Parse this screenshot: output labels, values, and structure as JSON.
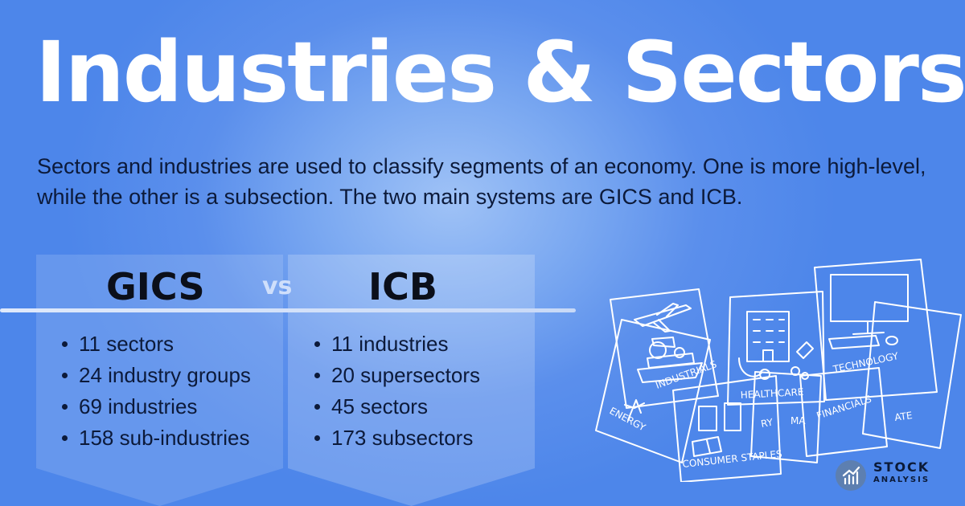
{
  "title": "Industries & Sectors",
  "intro": "Sectors and industries are used to classify segments of an economy. One is more high-level, while the other is a subsection. The two main systems are GICS and ICB.",
  "comparison": {
    "vs": "vs",
    "gics": {
      "heading": "GICS",
      "items": [
        "11 sectors",
        "24 industry groups",
        "69 industries",
        "158 sub-industries"
      ]
    },
    "icb": {
      "heading": "ICB",
      "items": [
        "11 industries",
        "20 supersectors",
        "45 sectors",
        "173 subsectors"
      ]
    }
  },
  "illustration": {
    "cards": [
      "INDUSTRIALS",
      "HEALTHCARE",
      "TECHNOLOGY",
      "FINANCIALS",
      "ENERGY",
      "CONSUMER STAPLES",
      "RY",
      "MA",
      "ATE"
    ]
  },
  "logo": {
    "line1": "STOCK",
    "line2": "ANALYSIS"
  },
  "colors": {
    "background": "#5b8fec",
    "title": "#ffffff",
    "text": "#0c1a3a",
    "vs": "#cfdffb"
  }
}
